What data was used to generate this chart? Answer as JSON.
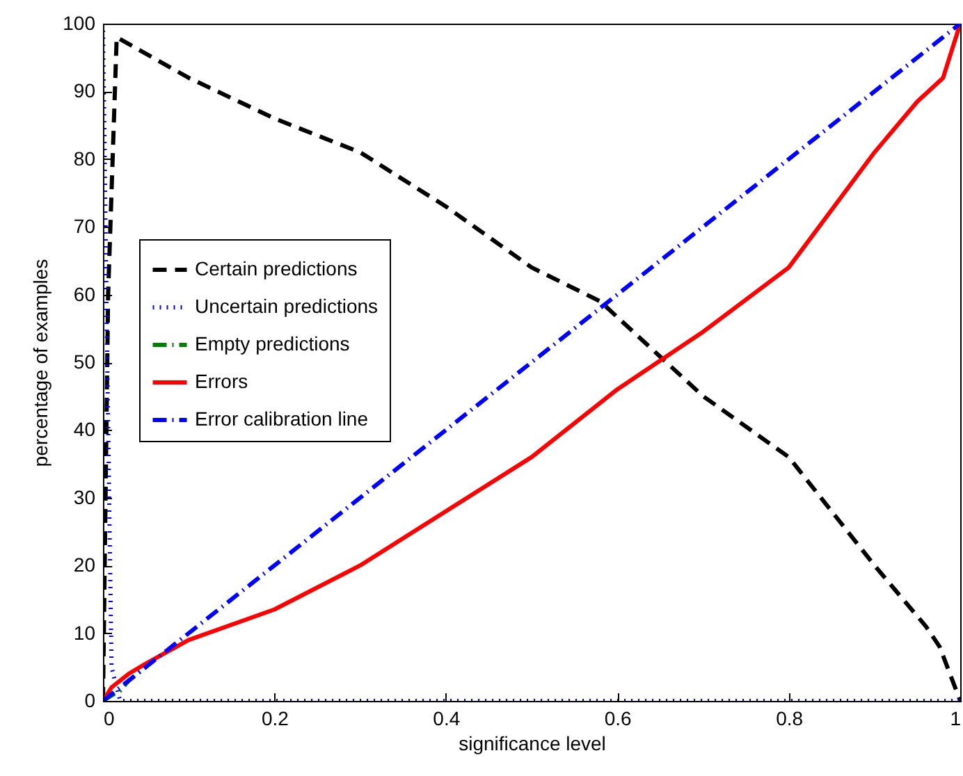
{
  "chart_data": {
    "type": "line",
    "xlabel": "significance level",
    "ylabel": "percentage of examples",
    "xlim": [
      0,
      1
    ],
    "ylim": [
      0,
      100
    ],
    "xticks": [
      0,
      0.2,
      0.4,
      0.6,
      0.8,
      1
    ],
    "yticks": [
      0,
      10,
      20,
      30,
      40,
      50,
      60,
      70,
      80,
      90,
      100
    ],
    "grid": false,
    "legend": "left",
    "marker": "none",
    "series": [
      {
        "name": "Certain predictions",
        "color": "#000000",
        "line_style": "dashed",
        "x": [
          0,
          0.006,
          0.016,
          0.1,
          0.2,
          0.3,
          0.4,
          0.5,
          0.58,
          0.7,
          0.8,
          0.9,
          0.96,
          0.976,
          1
        ],
        "values": [
          0,
          60,
          98,
          92,
          86,
          81,
          73,
          64,
          59,
          45,
          36,
          20,
          11,
          8,
          0
        ]
      },
      {
        "name": "Uncertain predictions",
        "color": "#0000ff",
        "line_style": "dotted",
        "x": [
          0,
          0.005,
          0.01,
          0.02,
          1
        ],
        "values": [
          100,
          50,
          5,
          0,
          0
        ]
      },
      {
        "name": "Empty predictions",
        "color": "#008000",
        "line_style": "dashdot",
        "x": [
          0,
          0.01,
          0.02,
          0.03,
          0.05
        ],
        "values": [
          0,
          0.8,
          1.5,
          3,
          5
        ]
      },
      {
        "name": "Errors",
        "color": "#ff0000",
        "line_style": "solid",
        "x": [
          0,
          0.01,
          0.03,
          0.05,
          0.1,
          0.2,
          0.3,
          0.4,
          0.5,
          0.6,
          0.7,
          0.8,
          0.9,
          0.95,
          0.98,
          1
        ],
        "values": [
          0,
          2,
          4,
          5.5,
          9,
          13.5,
          20,
          28,
          36,
          46,
          54.5,
          64,
          81,
          88.5,
          92,
          100
        ]
      },
      {
        "name": "Error calibration line",
        "color": "#0000ff",
        "line_style": "dashdot",
        "x": [
          0,
          1
        ],
        "values": [
          0,
          100
        ]
      }
    ]
  }
}
